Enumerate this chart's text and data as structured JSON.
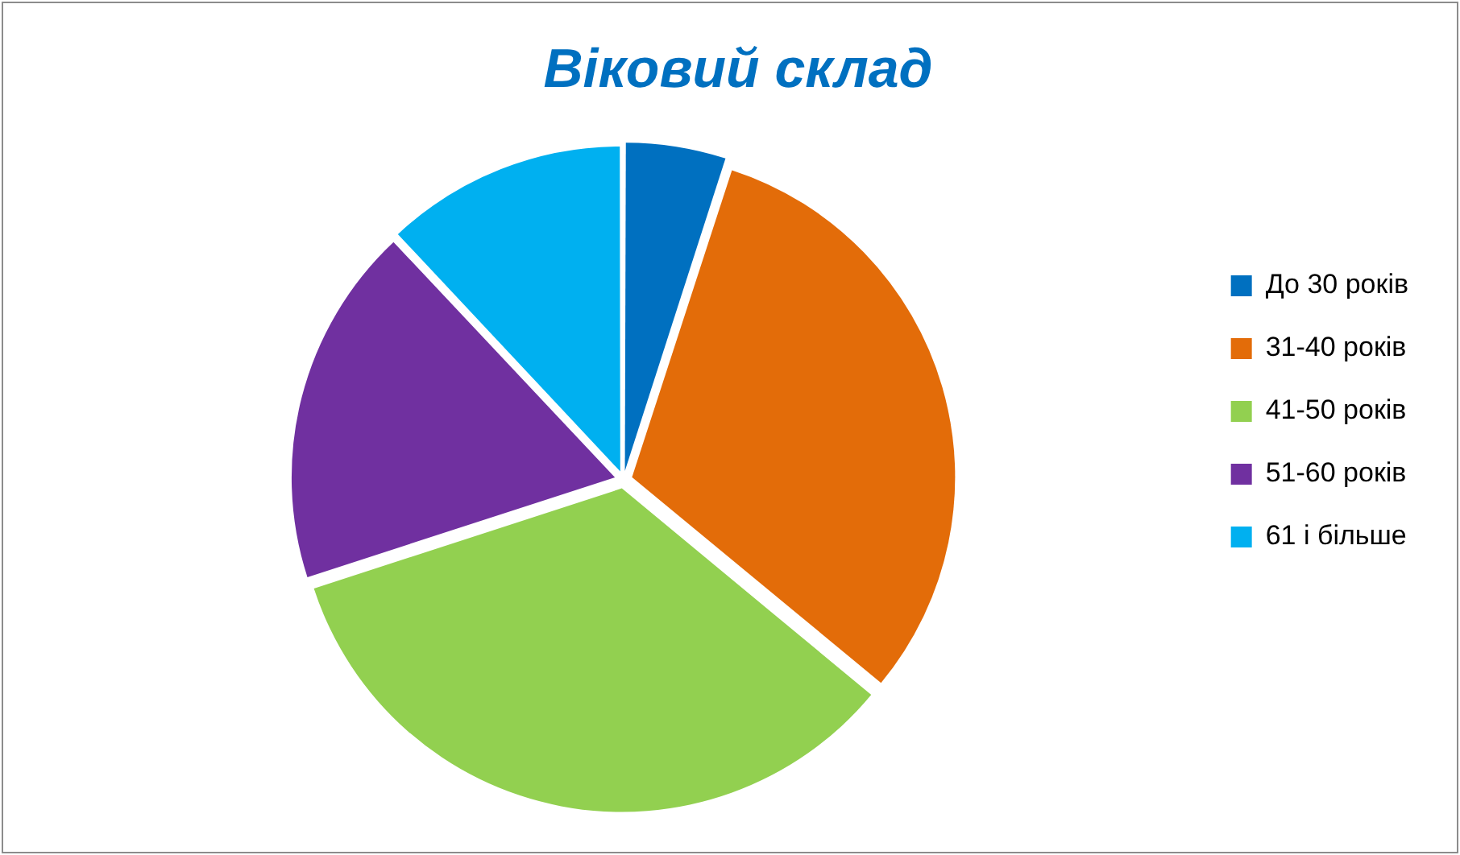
{
  "chart_data": {
    "type": "pie",
    "title": "Віковий склад",
    "categories": [
      "До 30 років",
      "31-40 років",
      "41-50 років",
      "51-60 років",
      "61 і більше"
    ],
    "values": [
      5,
      31,
      34,
      18,
      12
    ],
    "colors": [
      "#0070c0",
      "#e36c09",
      "#92d050",
      "#7030a0",
      "#00b0f0"
    ],
    "legend": "right"
  }
}
